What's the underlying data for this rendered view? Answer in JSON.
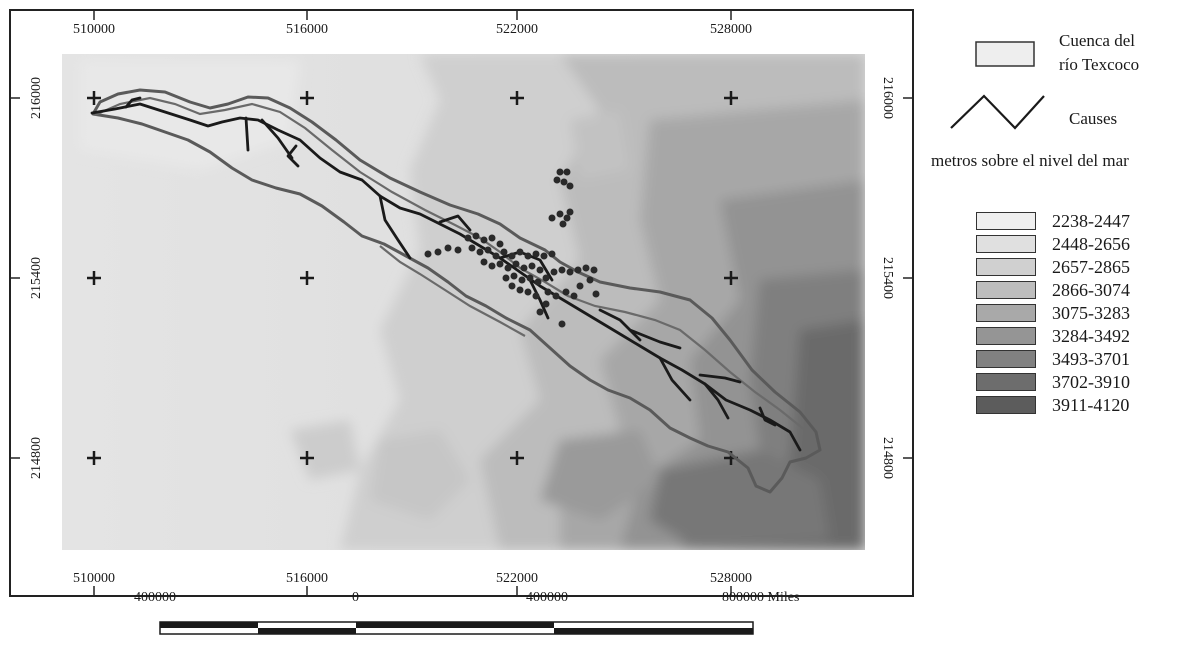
{
  "map": {
    "x_ticks": [
      "510000",
      "516000",
      "522000",
      "528000"
    ],
    "y_ticks": [
      "216000",
      "215400",
      "214800"
    ],
    "colors": {
      "frame": "#222222",
      "boundary": "#5a5a5a",
      "streams": "#1a1a1a",
      "points": "#2a2a2a",
      "crosses": "#1a1a1a"
    }
  },
  "legend": {
    "basin_label_line1": "Cuenca del",
    "basin_label_line2": "río Texcoco",
    "streams_label": "Causes",
    "elevation_title": "metros sobre el nivel del mar",
    "elevation_classes": [
      {
        "label": "2238-2447",
        "color": "#efefef"
      },
      {
        "label": "2448-2656",
        "color": "#e0e0e0"
      },
      {
        "label": "2657-2865",
        "color": "#d0d0d0"
      },
      {
        "label": "2866-3074",
        "color": "#bdbdbd"
      },
      {
        "label": "3075-3283",
        "color": "#a9a9a9"
      },
      {
        "label": "3284-3492",
        "color": "#959595"
      },
      {
        "label": "3493-3701",
        "color": "#818181"
      },
      {
        "label": "3702-3910",
        "color": "#6d6d6d"
      },
      {
        "label": "3911-4120",
        "color": "#5c5c5c"
      }
    ]
  },
  "scale_bar": {
    "labels": [
      "400000",
      "0",
      "400000",
      "800000 Miles"
    ]
  }
}
